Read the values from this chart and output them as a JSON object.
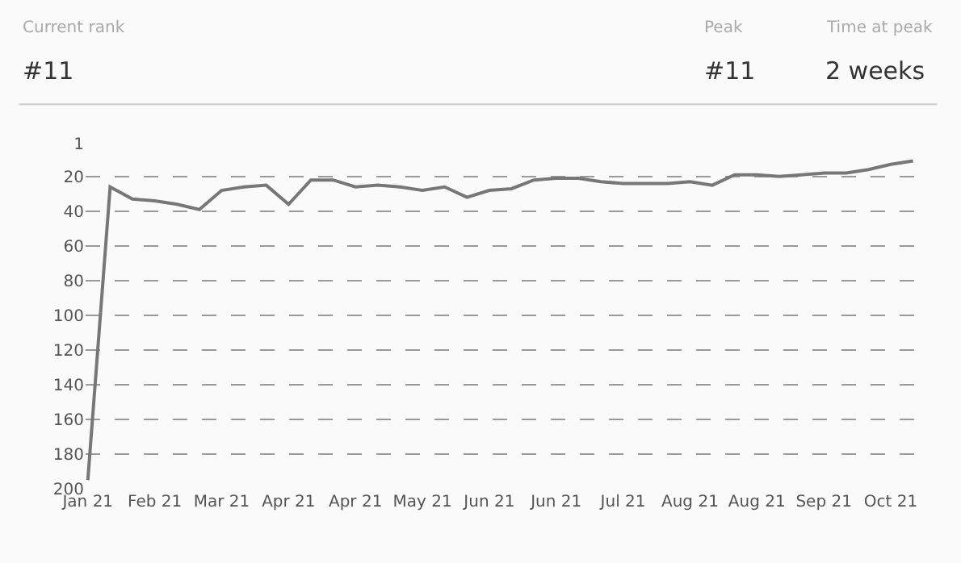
{
  "chart_data": {
    "type": "line",
    "categories": [
      "Jan 21",
      null,
      null,
      "Feb 21",
      null,
      null,
      "Mar 21",
      null,
      null,
      "Apr 21",
      null,
      null,
      "Apr 21",
      null,
      null,
      "May 21",
      null,
      null,
      "Jun 21",
      null,
      null,
      "Jun 21",
      null,
      null,
      "Jul 21",
      null,
      null,
      "Aug 21",
      null,
      null,
      "Aug 21",
      null,
      null,
      "Sep 21",
      null,
      null,
      "Oct 21",
      null
    ],
    "series": [
      {
        "color": "#777777",
        "values": [
          195,
          26,
          33,
          34,
          36,
          39,
          28,
          26,
          25,
          36,
          22,
          22,
          26,
          25,
          26,
          28,
          26,
          32,
          28,
          27,
          22,
          21,
          21,
          23,
          24,
          24,
          24,
          23,
          25,
          19,
          19,
          20,
          19,
          18,
          18,
          16,
          13,
          11
        ]
      }
    ],
    "ylim": [
      200,
      1
    ],
    "yticks": [
      1,
      20,
      40,
      60,
      80,
      100,
      120,
      140,
      160,
      180,
      200
    ],
    "grid": "y",
    "line_style": "solid",
    "marker": "none",
    "annotations": [
      "Current rank",
      "#11",
      "Peak",
      "#11",
      "Time at peak",
      "2 weeks"
    ]
  }
}
